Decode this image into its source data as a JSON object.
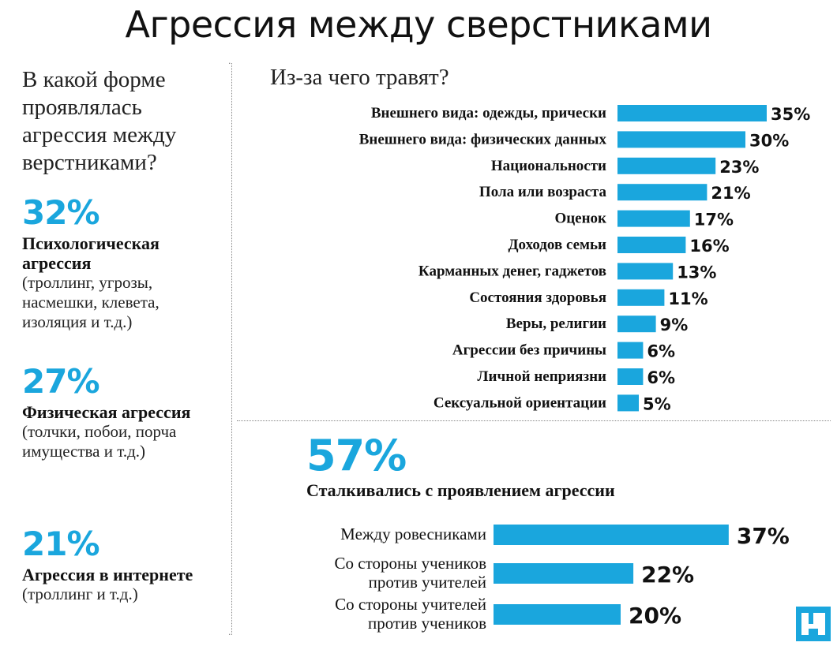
{
  "title": "Агрессия между сверстниками",
  "forms": {
    "question": "В какой форме проявлялась агрессия между верстниками?",
    "items": [
      {
        "value": "32%",
        "name": "Психологическая агрессия",
        "description": "(троллинг, угрозы, насмешки, клевета, изоляция и т.д.)"
      },
      {
        "value": "27%",
        "name": "Физическая агрессия",
        "description": "(толчки, побои, порча имущества и т.д.)"
      },
      {
        "value": "21%",
        "name": "Агрессия в интернете",
        "description": "(троллинг и т.д.)"
      }
    ]
  },
  "encountered": {
    "value": "57%",
    "caption": "Сталкивались с проявлением агрессии"
  },
  "colors": {
    "accent": "#1aa6dd",
    "text": "#111111"
  },
  "logo_icon": "logo-icon",
  "chart_data": [
    {
      "type": "bar",
      "orientation": "horizontal",
      "title": "Из-за чего травят?",
      "categories": [
        "Внешнего вида: одежды, прически",
        "Внешнего вида: физических данных",
        "Национальности",
        "Пола или возраста",
        "Оценок",
        "Доходов семьи",
        "Карманных денег, гаджетов",
        "Состояния здоровья",
        "Веры, религии",
        "Агрессии без причины",
        "Личной неприязни",
        "Сексуальной ориентации"
      ],
      "values": [
        35,
        30,
        23,
        21,
        17,
        16,
        13,
        11,
        9,
        6,
        6,
        5
      ],
      "value_labels": [
        "35%",
        "30%",
        "23%",
        "21%",
        "17%",
        "16%",
        "13%",
        "11%",
        "9%",
        "6%",
        "6%",
        "5%"
      ],
      "bar_color": "#1aa6dd",
      "grid": false
    },
    {
      "type": "bar",
      "orientation": "horizontal",
      "title": "",
      "categories": [
        [
          "Между ровесниками"
        ],
        [
          "Со стороны учеников",
          "против учителей"
        ],
        [
          "Со стороны учителей",
          "против учеников"
        ]
      ],
      "values": [
        37,
        22,
        20
      ],
      "value_labels": [
        "37%",
        "22%",
        "20%"
      ],
      "bar_color": "#1aa6dd",
      "grid": false
    }
  ]
}
